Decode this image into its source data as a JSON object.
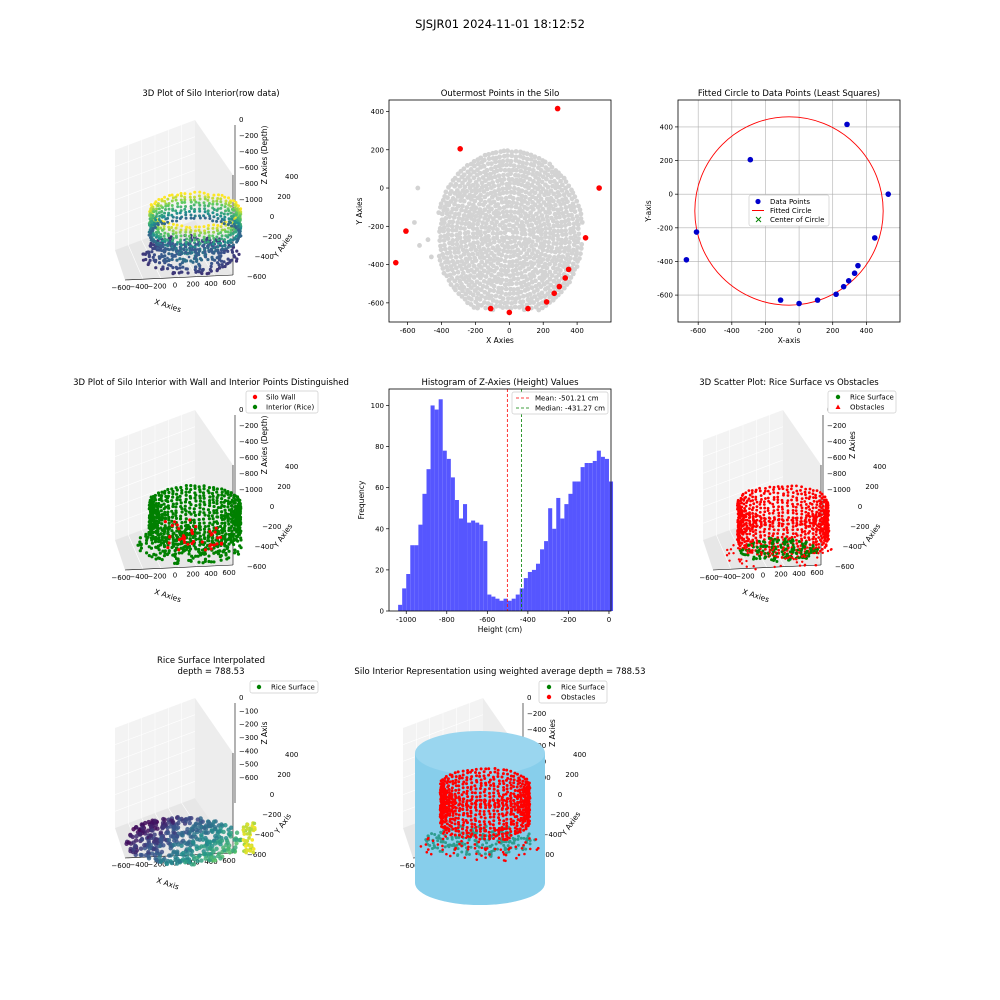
{
  "suptitle": "SJSJR01 2024-11-01 18:12:52",
  "colors": {
    "wall": "#ff0000",
    "interior": "#008000",
    "blue_points": "#0000cc",
    "hist": "#4d4dff",
    "grey": "#d3d3d3",
    "skyblue": "#87ceeb",
    "mean_line": "#ff0000",
    "median_line": "#008000"
  },
  "chart_data": [
    {
      "id": "p1",
      "type": "scatter3d",
      "title": "3D Plot of Silo Interior(row data)",
      "xlabel": "X Axies",
      "ylabel": "Y Axies",
      "zlabel": "Z Axies (Depth)",
      "x_ticks": [
        "−600",
        "−400",
        "−200",
        "0",
        "200",
        "400",
        "600"
      ],
      "y_ticks": [
        "−600",
        "−400",
        "−200",
        "0",
        "200",
        "400"
      ],
      "z_ticks": [
        "0",
        "−200",
        "−400",
        "−600",
        "−800",
        "−1000"
      ],
      "colormap": "viridis"
    },
    {
      "id": "p2",
      "type": "scatter",
      "title": "Outermost Points in the Silo",
      "xlabel": "X Axies",
      "ylabel": "Y Axies",
      "xlim": [
        -710,
        600
      ],
      "ylim": [
        -700,
        460
      ],
      "x_ticks": [
        -600,
        -400,
        -200,
        0,
        200,
        400
      ],
      "y_ticks": [
        400,
        200,
        0,
        -200,
        -400,
        -600
      ],
      "outer_points": [
        [
          -670,
          -390
        ],
        [
          -610,
          -225
        ],
        [
          -290,
          205
        ],
        [
          -110,
          -630
        ],
        [
          0,
          -650
        ],
        [
          110,
          -630
        ],
        [
          220,
          -595
        ],
        [
          265,
          -550
        ],
        [
          295,
          -515
        ],
        [
          330,
          -470
        ],
        [
          350,
          -425
        ],
        [
          450,
          -260
        ],
        [
          530,
          0
        ],
        [
          285,
          415
        ]
      ]
    },
    {
      "id": "p3",
      "type": "scatter",
      "title": "Fitted Circle to Data Points (Least Squares)",
      "xlabel": "X-axis",
      "ylabel": "Y-axis",
      "xlim": [
        -720,
        600
      ],
      "ylim": [
        -760,
        560
      ],
      "x_ticks": [
        -600,
        -400,
        -200,
        0,
        200,
        400
      ],
      "y_ticks": [
        400,
        200,
        0,
        -200,
        -400,
        -600
      ],
      "points": [
        [
          -670,
          -390
        ],
        [
          -610,
          -225
        ],
        [
          -290,
          205
        ],
        [
          -110,
          -630
        ],
        [
          0,
          -650
        ],
        [
          110,
          -630
        ],
        [
          220,
          -595
        ],
        [
          265,
          -550
        ],
        [
          295,
          -515
        ],
        [
          330,
          -470
        ],
        [
          350,
          -425
        ],
        [
          450,
          -260
        ],
        [
          530,
          0
        ],
        [
          285,
          415
        ]
      ],
      "circle": {
        "cx": -60,
        "cy": -100,
        "r": 560
      },
      "legend": [
        "Data Points",
        "Fitted Circle",
        "Center of Circle"
      ]
    },
    {
      "id": "p4",
      "type": "scatter3d",
      "title": "3D Plot of Silo Interior with Wall and Interior Points Distinguished",
      "xlabel": "X Axies",
      "ylabel": "Y Axies",
      "zlabel": "Z Axies (Depth)",
      "x_ticks": [
        "−600",
        "−400",
        "−200",
        "0",
        "200",
        "400",
        "600"
      ],
      "y_ticks": [
        "−600",
        "−400",
        "−200",
        "0",
        "200",
        "400"
      ],
      "z_ticks": [
        "0",
        "−200",
        "−400",
        "−600",
        "−800",
        "−1000"
      ],
      "legend": [
        "Silo Wall",
        "Interior (Rice)"
      ]
    },
    {
      "id": "p5",
      "type": "bar",
      "title": "Histogram of Z-Axies (Height) Values",
      "xlabel": "Height (cm)",
      "ylabel": "Frequency",
      "xlim": [
        -1085,
        10
      ],
      "ylim": [
        0,
        108
      ],
      "x_ticks": [
        -1000,
        -800,
        -600,
        -400,
        -200,
        0
      ],
      "y_ticks": [
        0,
        20,
        40,
        60,
        80,
        100
      ],
      "bin_start": -1040,
      "bin_width": 20,
      "values": [
        3,
        11,
        18,
        32,
        32,
        42,
        57,
        69,
        100,
        98,
        103,
        78,
        74,
        65,
        54,
        45,
        52,
        43,
        44,
        43,
        42,
        34,
        8,
        7,
        6,
        5,
        6,
        5,
        6,
        8,
        11,
        16,
        19,
        20,
        23,
        30,
        34,
        50,
        40,
        55,
        45,
        52,
        57,
        63,
        63,
        70,
        72,
        72,
        73,
        78,
        75,
        74,
        63
      ],
      "mean": -501.21,
      "median": -431.27,
      "legend": [
        "Mean: -501.21 cm",
        "Median: -431.27 cm"
      ]
    },
    {
      "id": "p6",
      "type": "scatter3d",
      "title": "3D Scatter Plot: Rice Surface vs Obstacles",
      "xlabel": "X Axies",
      "ylabel": "Y Axies",
      "zlabel": "Z Axies",
      "x_ticks": [
        "−600",
        "−400",
        "−200",
        "0",
        "200",
        "400",
        "600"
      ],
      "y_ticks": [
        "−600",
        "−400",
        "−200",
        "0",
        "200",
        "400"
      ],
      "z_ticks": [
        "0",
        "−200",
        "−400",
        "−600",
        "−800",
        "−1000"
      ],
      "legend": [
        "Rice Surface",
        "Obstacles"
      ]
    },
    {
      "id": "p7",
      "type": "surface3d",
      "title": "Rice Surface Interpolated",
      "title2": "depth = 788.53",
      "xlabel": "X Axis",
      "ylabel": "Y Axis",
      "zlabel": "Z Axis",
      "x_ticks": [
        "−600",
        "−400",
        "−200",
        "0",
        "200",
        "400",
        "600"
      ],
      "y_ticks": [
        "−600",
        "−400",
        "−200",
        "0",
        "200",
        "400"
      ],
      "z_ticks": [
        "0",
        "−100",
        "−200",
        "−300",
        "−400",
        "−500",
        "−600"
      ],
      "legend": [
        "Rice Surface"
      ]
    },
    {
      "id": "p8",
      "type": "scatter3d",
      "title": "Silo Interior Representation using weighted average depth = 788.53",
      "xlabel": "X Axies",
      "ylabel": "Y Axies",
      "zlabel": "Z Axies",
      "x_ticks": [
        "−600",
        "−400",
        "−200",
        "0",
        "200",
        "400",
        "600"
      ],
      "y_ticks": [
        "−600",
        "−400",
        "−200",
        "0",
        "200",
        "400"
      ],
      "z_ticks": [
        "0",
        "−200",
        "−400",
        "−600",
        "−800",
        "−1000"
      ],
      "legend": [
        "Rice Surface",
        "Obstacles"
      ]
    }
  ]
}
